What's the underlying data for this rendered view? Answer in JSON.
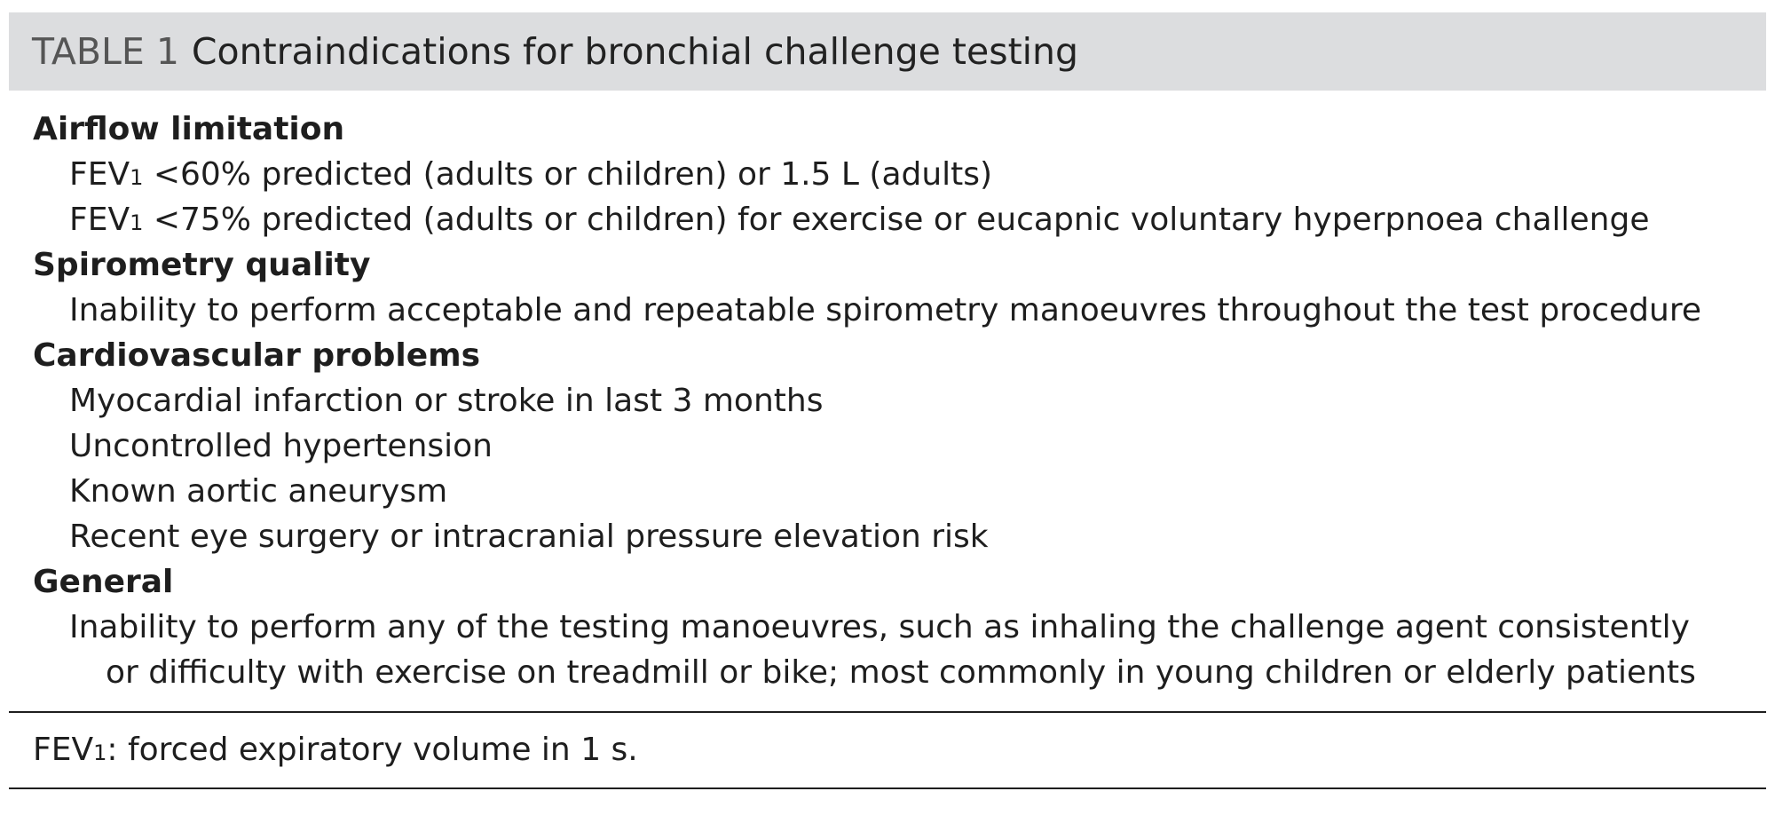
{
  "table": {
    "label": "TABLE 1",
    "title": "Contraindications for bronchial challenge testing",
    "sections": [
      {
        "heading": "Airflow limitation",
        "items": [
          {
            "pre": "FEV",
            "sub": "1",
            "post": " <60% predicted (adults or children) or 1.5 L (adults)"
          },
          {
            "pre": "FEV",
            "sub": "1",
            "post": " <75% predicted (adults or children) for exercise or eucapnic voluntary hyperpnoea challenge"
          }
        ]
      },
      {
        "heading": "Spirometry quality",
        "items": [
          {
            "text": "Inability to perform acceptable and repeatable spirometry manoeuvres throughout the test procedure"
          }
        ]
      },
      {
        "heading": "Cardiovascular problems",
        "items": [
          {
            "text": "Myocardial infarction or stroke in last 3 months"
          },
          {
            "text": "Uncontrolled hypertension"
          },
          {
            "text": "Known aortic aneurysm"
          },
          {
            "text": "Recent eye surgery or intracranial pressure elevation risk"
          }
        ]
      },
      {
        "heading": "General",
        "items": [
          {
            "text": "Inability to perform any of the testing manoeuvres, such as inhaling the challenge agent consistently",
            "cont": "or difficulty with exercise on treadmill or bike; most commonly in young children or elderly patients"
          }
        ]
      }
    ],
    "footnote": {
      "pre": "FEV",
      "sub": "1",
      "post": ": forced expiratory volume in 1 s."
    }
  }
}
